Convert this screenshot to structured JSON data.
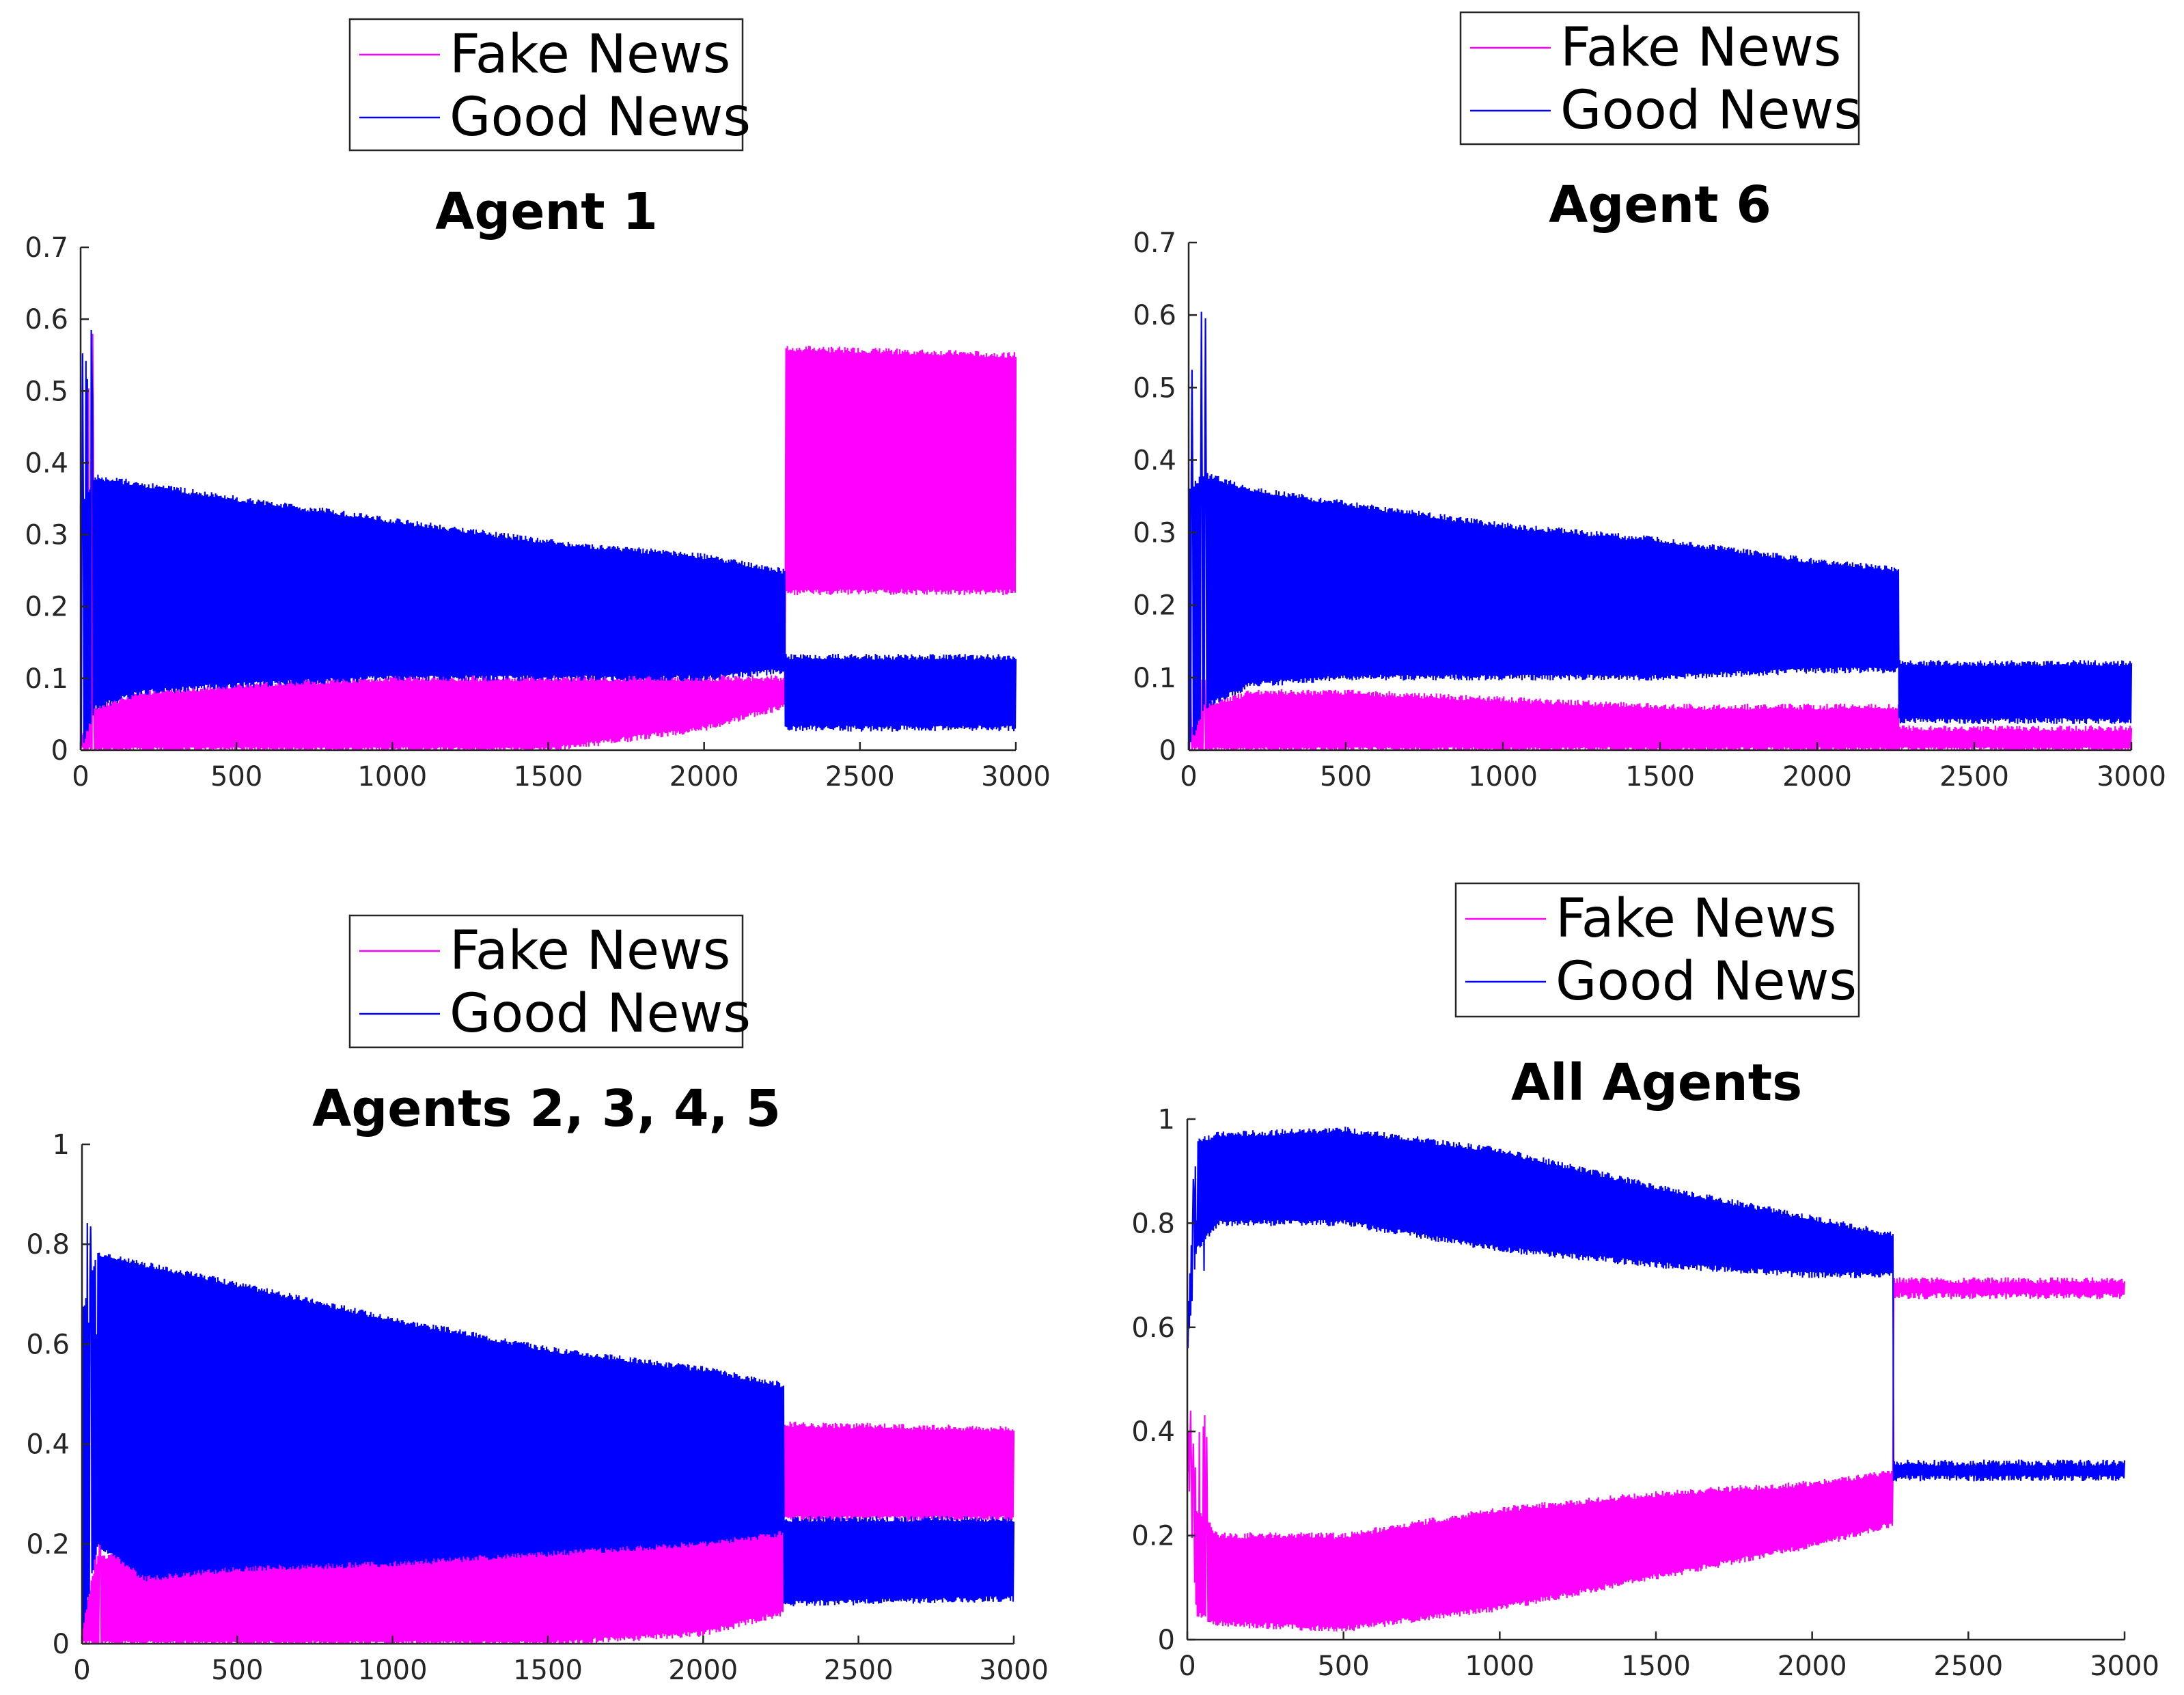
{
  "chart_data": [
    {
      "type": "line",
      "title": "Agent 1",
      "xlabel": "",
      "ylabel": "",
      "xlim": [
        0,
        3000
      ],
      "ylim": [
        0,
        0.7
      ],
      "xticks": [
        "0",
        "500",
        "1000",
        "1500",
        "2000",
        "2500",
        "3000"
      ],
      "yticks": [
        "0",
        "0.1",
        "0.2",
        "0.3",
        "0.4",
        "0.5",
        "0.6",
        "0.7"
      ],
      "legend": [
        "Fake News",
        "Good News"
      ],
      "legend_position": "top",
      "switch_x": 2260,
      "series": [
        {
          "name": "Fake News",
          "color": "#ff00ff",
          "envelope_before": {
            "x": [
              0,
              50,
              200,
              500,
              1000,
              1500,
              2000,
              2250
            ],
            "upper": [
              0.02,
              0.06,
              0.08,
              0.09,
              0.1,
              0.1,
              0.1,
              0.1
            ],
            "lower": [
              0.0,
              0.0,
              0.0,
              0.0,
              0.0,
              0.0,
              0.03,
              0.06
            ]
          },
          "envelope_after": {
            "x": [
              2260,
              3000
            ],
            "upper": [
              0.56,
              0.55
            ],
            "lower": [
              0.22,
              0.22
            ]
          },
          "spike_max": 0.59
        },
        {
          "name": "Good News",
          "color": "#0000ff",
          "envelope_before": {
            "x": [
              0,
              50,
              200,
              500,
              1000,
              1500,
              2000,
              2250
            ],
            "upper": [
              0.34,
              0.38,
              0.37,
              0.35,
              0.32,
              0.29,
              0.27,
              0.25
            ],
            "lower": [
              0.0,
              0.06,
              0.08,
              0.09,
              0.1,
              0.1,
              0.1,
              0.11
            ]
          },
          "envelope_after": {
            "x": [
              2260,
              3000
            ],
            "upper": [
              0.13,
              0.13
            ],
            "lower": [
              0.03,
              0.03
            ]
          },
          "spike_max": 0.63
        }
      ]
    },
    {
      "type": "line",
      "title": "Agent 6",
      "xlabel": "",
      "ylabel": "",
      "xlim": [
        0,
        3000
      ],
      "ylim": [
        0,
        0.7
      ],
      "xticks": [
        "0",
        "500",
        "1000",
        "1500",
        "2000",
        "2500",
        "3000"
      ],
      "yticks": [
        "0",
        "0.1",
        "0.2",
        "0.3",
        "0.4",
        "0.5",
        "0.6",
        "0.7"
      ],
      "legend": [
        "Fake News",
        "Good News"
      ],
      "legend_position": "top",
      "switch_x": 2260,
      "series": [
        {
          "name": "Fake News",
          "color": "#ff00ff",
          "envelope_before": {
            "x": [
              0,
              50,
              200,
              500,
              1000,
              1500,
              2000,
              2250
            ],
            "upper": [
              0.02,
              0.06,
              0.08,
              0.08,
              0.07,
              0.06,
              0.06,
              0.06
            ],
            "lower": [
              0.0,
              0.0,
              0.0,
              0.0,
              0.0,
              0.0,
              0.0,
              0.0
            ]
          },
          "envelope_after": {
            "x": [
              2260,
              3000
            ],
            "upper": [
              0.03,
              0.03
            ],
            "lower": [
              0.0,
              0.0
            ]
          },
          "spike_max": 0.1
        },
        {
          "name": "Good News",
          "color": "#0000ff",
          "envelope_before": {
            "x": [
              0,
              50,
              200,
              500,
              1000,
              1500,
              2000,
              2250
            ],
            "upper": [
              0.36,
              0.38,
              0.36,
              0.34,
              0.31,
              0.29,
              0.26,
              0.25
            ],
            "lower": [
              0.0,
              0.06,
              0.09,
              0.1,
              0.1,
              0.1,
              0.11,
              0.11
            ]
          },
          "envelope_after": {
            "x": [
              2260,
              3000
            ],
            "upper": [
              0.12,
              0.12
            ],
            "lower": [
              0.04,
              0.04
            ]
          },
          "spike_max": 0.64
        }
      ]
    },
    {
      "type": "line",
      "title": "Agents 2, 3, 4, 5",
      "xlabel": "",
      "ylabel": "",
      "xlim": [
        0,
        3000
      ],
      "ylim": [
        0,
        1
      ],
      "xticks": [
        "0",
        "500",
        "1000",
        "1500",
        "2000",
        "2500",
        "3000"
      ],
      "yticks": [
        "0",
        "0.2",
        "0.4",
        "0.6",
        "0.8",
        "1"
      ],
      "legend": [
        "Fake News",
        "Good News"
      ],
      "legend_position": "top",
      "switch_x": 2260,
      "series": [
        {
          "name": "Fake News",
          "color": "#ff00ff",
          "envelope_before": {
            "x": [
              0,
              50,
              200,
              500,
              1000,
              1500,
              2000,
              2250
            ],
            "upper": [
              0.05,
              0.17,
              0.2,
              0.21,
              0.22,
              0.22,
              0.23,
              0.25
            ],
            "lower": [
              0.0,
              0.0,
              0.0,
              0.0,
              0.0,
              0.0,
              0.02,
              0.06
            ]
          },
          "envelope_after": {
            "x": [
              2260,
              3000
            ],
            "upper": [
              0.44,
              0.43
            ],
            "lower": [
              0.25,
              0.25
            ]
          },
          "spike_max": 0.56
        },
        {
          "name": "Good News",
          "color": "#0000ff",
          "envelope_before": {
            "x": [
              0,
              50,
              200,
              500,
              1000,
              1500,
              2000,
              2250
            ],
            "upper": [
              0.66,
              0.78,
              0.76,
              0.72,
              0.65,
              0.59,
              0.55,
              0.52
            ],
            "lower": [
              0.02,
              0.2,
              0.13,
              0.15,
              0.16,
              0.18,
              0.2,
              0.22
            ]
          },
          "envelope_after": {
            "x": [
              2260,
              3000
            ],
            "upper": [
              0.25,
              0.25
            ],
            "lower": [
              0.08,
              0.09
            ]
          },
          "spike_max": 0.86
        }
      ]
    },
    {
      "type": "line",
      "title": "All Agents",
      "xlabel": "",
      "ylabel": "",
      "xlim": [
        0,
        3000
      ],
      "ylim": [
        0,
        1
      ],
      "xticks": [
        "0",
        "500",
        "1000",
        "1500",
        "2000",
        "2500",
        "3000"
      ],
      "yticks": [
        "0",
        "0.2",
        "0.4",
        "0.6",
        "0.8",
        "1"
      ],
      "legend": [
        "Fake News",
        "Good News"
      ],
      "legend_position": "top",
      "switch_x": 2260,
      "series": [
        {
          "name": "Fake News",
          "color": "#ff00ff",
          "envelope_before": {
            "x": [
              0,
              30,
              100,
              500,
              1000,
              1500,
              2000,
              2250
            ],
            "upper": [
              0.42,
              0.25,
              0.2,
              0.2,
              0.25,
              0.28,
              0.3,
              0.32
            ],
            "lower": [
              0.35,
              0.05,
              0.03,
              0.02,
              0.06,
              0.12,
              0.18,
              0.22
            ]
          },
          "envelope_after": {
            "x": [
              2270,
              3000
            ],
            "upper": [
              0.69,
              0.69
            ],
            "lower": [
              0.66,
              0.66
            ]
          },
          "spike_max": 0.45
        },
        {
          "name": "Good News",
          "color": "#0000ff",
          "envelope_before": {
            "x": [
              0,
              30,
              100,
              500,
              1000,
              1500,
              2000,
              2250
            ],
            "upper": [
              0.6,
              0.96,
              0.97,
              0.98,
              0.94,
              0.87,
              0.81,
              0.78
            ],
            "lower": [
              0.55,
              0.75,
              0.8,
              0.8,
              0.75,
              0.72,
              0.7,
              0.7
            ]
          },
          "envelope_after": {
            "x": [
              2270,
              3000
            ],
            "upper": [
              0.34,
              0.34
            ],
            "lower": [
              0.31,
              0.31
            ]
          },
          "spike_max": 0.98
        }
      ]
    }
  ]
}
